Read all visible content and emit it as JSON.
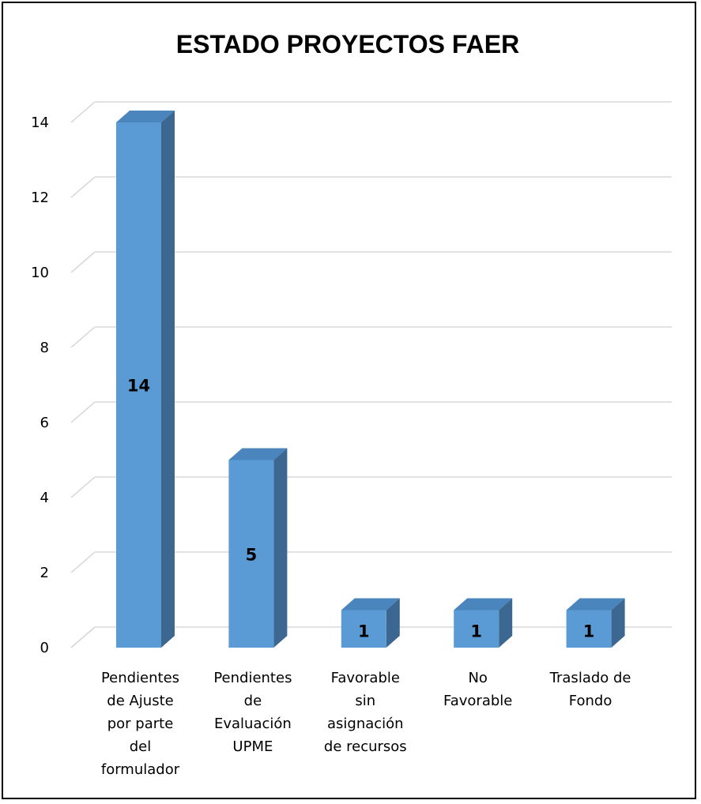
{
  "chart_data": {
    "type": "bar",
    "title": "ESTADO PROYECTOS FAER",
    "categories": [
      [
        "Pendientes",
        "de Ajuste",
        "por parte",
        "del",
        "formulador"
      ],
      [
        "Pendientes",
        "de",
        "Evaluación",
        "UPME"
      ],
      [
        "Favorable",
        "sin",
        "asignación",
        "de recursos"
      ],
      [
        "No",
        "Favorable"
      ],
      [
        "Traslado de",
        "Fondo"
      ]
    ],
    "values": [
      14,
      5,
      1,
      1,
      1
    ],
    "yticks": [
      "0",
      "2",
      "4",
      "6",
      "8",
      "10",
      "12",
      "14"
    ],
    "ylim": [
      0,
      14
    ],
    "grid": true,
    "legend": "none",
    "colors": {
      "front": "#5b9bd5",
      "side": "#3b6790",
      "top": "#4a85be",
      "grid": "#d9d9d9",
      "floor": "#d9d9d9"
    }
  }
}
